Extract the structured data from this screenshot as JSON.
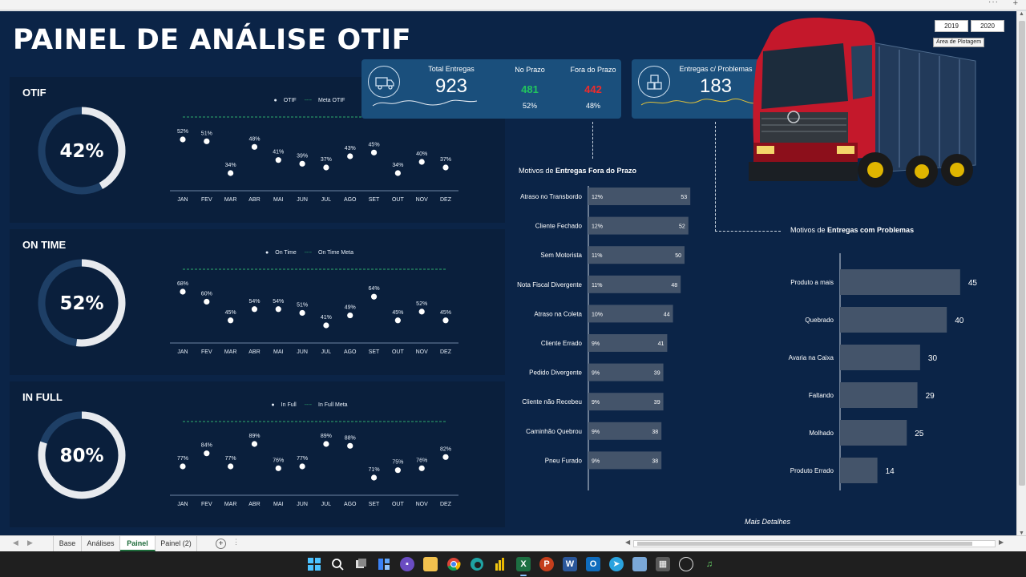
{
  "window": {
    "more_menu": "···",
    "corner_plus": "+"
  },
  "dashboard": {
    "title": "PAINEL DE ANÁLISE OTIF",
    "more_details": "Mais Detalhes",
    "slicers": [
      "2019",
      "2020"
    ],
    "tooltip": "Área de Plotagem"
  },
  "kpis": {
    "total_label": "Total Entregas",
    "total_value": "923",
    "on_time_label": "No Prazo",
    "on_time_value": "481",
    "on_time_pct": "52%",
    "late_label": "Fora do Prazo",
    "late_value": "442",
    "late_pct": "48%",
    "problems_label": "Entregas c/ Problemas",
    "problems_value": "183",
    "icon_truck": "truck-icon",
    "icon_boxes": "boxes-icon"
  },
  "colors": {
    "background": "#0b2447",
    "panel": "#0a1f3c",
    "card": "#1a4f7c",
    "bar": "#44546a",
    "green": "#22c55e",
    "red": "#ef2b2b",
    "target_line": "#2fae6e",
    "donut_track": "#1e3f66"
  },
  "panels": [
    {
      "title": "OTIF",
      "value_label": "42%",
      "value": 0.42,
      "legend_series": "OTIF",
      "legend_target": "Meta OTIF"
    },
    {
      "title": "ON TIME",
      "value_label": "52%",
      "value": 0.52,
      "legend_series": "On Time",
      "legend_target": "On Time Meta"
    },
    {
      "title": "IN FULL",
      "value_label": "80%",
      "value": 0.8,
      "legend_series": "In Full",
      "legend_target": "In Full Meta"
    }
  ],
  "chart_data": [
    {
      "type": "scatter",
      "title": "OTIF",
      "categories": [
        "JAN",
        "FEV",
        "MAR",
        "ABR",
        "MAI",
        "JUN",
        "JUL",
        "AGO",
        "SET",
        "OUT",
        "NOV",
        "DEZ"
      ],
      "series": [
        {
          "name": "OTIF",
          "values": [
            52,
            51,
            34,
            48,
            41,
            39,
            37,
            43,
            45,
            34,
            40,
            37
          ],
          "labels": [
            "52%",
            "51%",
            "34%",
            "48%",
            "41%",
            "39%",
            "37%",
            "43%",
            "45%",
            "34%",
            "40%",
            "37%"
          ]
        }
      ],
      "target": {
        "name": "Meta OTIF"
      },
      "ylim": [
        0,
        100
      ]
    },
    {
      "type": "scatter",
      "title": "ON TIME",
      "categories": [
        "JAN",
        "FEV",
        "MAR",
        "ABR",
        "MAI",
        "JUN",
        "JUL",
        "AGO",
        "SET",
        "OUT",
        "NOV",
        "DEZ"
      ],
      "series": [
        {
          "name": "On Time",
          "values": [
            68,
            60,
            45,
            54,
            54,
            51,
            41,
            49,
            64,
            45,
            52,
            45
          ],
          "labels": [
            "68%",
            "60%",
            "45%",
            "54%",
            "54%",
            "51%",
            "41%",
            "49%",
            "64%",
            "45%",
            "52%",
            "45%"
          ]
        }
      ],
      "target": {
        "name": "On Time Meta"
      },
      "ylim": [
        0,
        100
      ]
    },
    {
      "type": "scatter",
      "title": "IN FULL",
      "categories": [
        "JAN",
        "FEV",
        "MAR",
        "ABR",
        "MAI",
        "JUN",
        "JUL",
        "AGO",
        "SET",
        "OUT",
        "NOV",
        "DEZ"
      ],
      "series": [
        {
          "name": "In Full",
          "values": [
            77,
            84,
            77,
            89,
            76,
            77,
            89,
            88,
            71,
            75,
            76,
            82
          ],
          "labels": [
            "77%",
            "84%",
            "77%",
            "89%",
            "76%",
            "77%",
            "89%",
            "88%",
            "71%",
            "75%",
            "76%",
            "82%"
          ]
        }
      ],
      "target": {
        "name": "In Full Meta"
      },
      "ylim": [
        0,
        100
      ]
    },
    {
      "type": "bar",
      "title": "Motivos de Entregas Fora do Prazo",
      "categories": [
        "Atraso no Transbordo",
        "Cliente Fechado",
        "Sem Motorista",
        "Nota Fiscal Divergente",
        "Atraso na Coleta",
        "Cliente Errado",
        "Pedido Divergente",
        "Cliente não Recebeu",
        "Caminhão Quebrou",
        "Pneu Furado"
      ],
      "values": [
        53,
        52,
        50,
        48,
        44,
        41,
        39,
        39,
        38,
        38
      ],
      "percent_labels": [
        "12%",
        "12%",
        "11%",
        "11%",
        "10%",
        "9%",
        "9%",
        "9%",
        "9%",
        "9%"
      ],
      "orientation": "horizontal"
    },
    {
      "type": "bar",
      "title": "Motivos de Entregas com Problemas",
      "categories": [
        "Produto a mais",
        "Quebrado",
        "Avaria na Caixa",
        "Faltando",
        "Molhado",
        "Produto Errado"
      ],
      "values": [
        45,
        40,
        30,
        29,
        25,
        14
      ],
      "orientation": "horizontal"
    }
  ],
  "section_titles": {
    "late_prefix": "Motivos de ",
    "late_bold": "Entregas Fora do Prazo",
    "problems_prefix": "Motivos de ",
    "problems_bold": "Entregas com Problemas"
  },
  "sheets": {
    "tabs": [
      "Base",
      "Análises",
      "Painel",
      "Painel (2)"
    ],
    "active": "Painel",
    "add": "+",
    "dots": "⋮"
  },
  "taskbar": {
    "icons": [
      "windows-start-icon",
      "search-icon",
      "task-view-icon",
      "widgets-icon",
      "chat-icon",
      "file-explorer-icon",
      "chrome-icon",
      "edge-icon",
      "power-bi-icon",
      "excel-icon",
      "powerpoint-icon",
      "word-icon",
      "outlook-icon",
      "telegram-icon",
      "photos-icon",
      "calculator-icon",
      "clock-icon",
      "headset-icon"
    ]
  }
}
